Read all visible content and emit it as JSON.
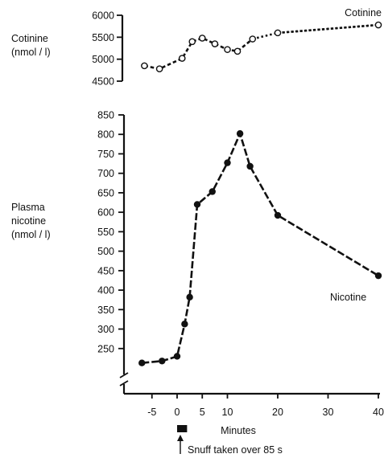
{
  "chart_data": [
    {
      "type": "line",
      "ylabel": [
        "Cotinine",
        "(nmol / l)"
      ],
      "ylim": [
        4500,
        6000
      ],
      "yticks": [
        4500,
        5000,
        5500,
        6000
      ],
      "xlim": [
        -7,
        41
      ],
      "series": [
        {
          "name": "Cotinine",
          "marker": "open-circle",
          "x": [
            -6.5,
            -3.5,
            1,
            3,
            5,
            7.5,
            10,
            12,
            15,
            20,
            40
          ],
          "y": [
            4850,
            4780,
            5020,
            5400,
            5480,
            5350,
            5220,
            5180,
            5460,
            5600,
            5780
          ],
          "segments": [
            {
              "from": 0,
              "to": 8,
              "style": "dashed"
            },
            {
              "from": 8,
              "to": 10,
              "style": "dotted"
            }
          ]
        }
      ]
    },
    {
      "type": "line",
      "ylabel": [
        "Plasma",
        "nicotine",
        "(nmol / l)"
      ],
      "ylim": [
        200,
        850
      ],
      "yticks": [
        250,
        300,
        350,
        400,
        450,
        500,
        550,
        600,
        650,
        700,
        750,
        800,
        850
      ],
      "y_axis_break": true,
      "xlabel": "Minutes",
      "xlim": [
        -7,
        41
      ],
      "xticks": [
        -5,
        0,
        5,
        10,
        20,
        30,
        40
      ],
      "series": [
        {
          "name": "Nicotine",
          "marker": "filled-circle",
          "x": [
            -7,
            -3,
            0,
            1.5,
            2.5,
            4,
            7,
            10,
            12.5,
            14.5,
            20,
            40
          ],
          "y": [
            213,
            218,
            230,
            313,
            382,
            620,
            653,
            727,
            802,
            718,
            592,
            437
          ],
          "style": "dashed"
        }
      ],
      "annotation": {
        "text": "Snuff taken over 85 s",
        "x_start": 0,
        "x_end": 1.5
      }
    }
  ]
}
